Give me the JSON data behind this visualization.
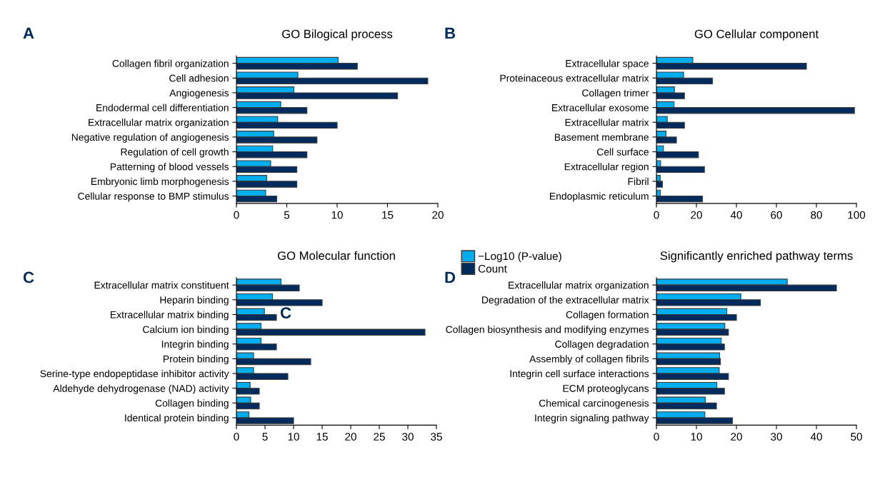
{
  "chart_data": [
    {
      "type": "bar",
      "orientation": "horizontal",
      "title": "GO Bilogical process",
      "annotations": [
        "A"
      ],
      "legend": "bottom right",
      "categories": [
        "Collagen fibril organization",
        "Cell adhesion",
        "Angiogenesis",
        "Endodermal cell differentiation",
        "Extracellular matrix organization",
        "Negative regulation of angiogenesis",
        "Regulation of cell growth",
        "Patterning of blood vessels",
        "Embryonic limb morphogenesis",
        "Cellular response to BMP stimulus"
      ],
      "xlim": [
        0,
        20
      ],
      "xticks": [
        0,
        5,
        10,
        15,
        20
      ],
      "series": [
        {
          "name": "−Log10 (P-value)",
          "color": "#00aeef",
          "values": [
            10.1,
            6.1,
            5.7,
            4.4,
            4.1,
            3.7,
            3.6,
            3.4,
            3.0,
            2.9
          ]
        },
        {
          "name": "Count",
          "color": "#002b5c",
          "values": [
            12,
            19,
            16,
            7,
            10,
            8,
            7,
            6,
            6,
            4
          ]
        }
      ]
    },
    {
      "type": "bar",
      "orientation": "horizontal",
      "title": "GO Cellular component",
      "annotations": [
        "B"
      ],
      "categories": [
        "Extracellular space",
        "Proteinaceous extracellular matrix",
        "Collagen trimer",
        "Extracellular exosome",
        "Extracellular matrix",
        "Basement membrane",
        "Cell surface",
        "Extracellular region",
        "Fibril",
        "Endoplasmic reticulum"
      ],
      "xlim": [
        0,
        100
      ],
      "xticks": [
        0,
        20,
        40,
        60,
        80,
        100
      ],
      "series": [
        {
          "color": "#00aeef",
          "values": [
            18.2,
            13.6,
            9.0,
            8.8,
            5.4,
            4.8,
            3.5,
            2.1,
            1.9,
            1.9
          ]
        },
        {
          "color": "#002b5c",
          "values": [
            75,
            28,
            14,
            99,
            14,
            10,
            21,
            24,
            3,
            23
          ]
        }
      ]
    },
    {
      "type": "bar",
      "orientation": "horizontal",
      "title": "GO Molecular function",
      "annotations": [
        "C",
        "C"
      ],
      "categories": [
        "Extracellular matrix constituent",
        "Heparin binding",
        "Extracellular matrix binding",
        "Calcium ion binding",
        "Integrin binding",
        "Protein binding",
        "Serine-type endopeptidase inhibitor activity",
        "Aldehyde dehydrogenase (NAD) activity",
        "Collagen binding",
        "Identical protein binding"
      ],
      "xlim": [
        0,
        35
      ],
      "xticks": [
        0,
        5,
        10,
        15,
        20,
        25,
        30,
        35
      ],
      "series": [
        {
          "color": "#00aeef",
          "values": [
            7.8,
            6.3,
            4.9,
            4.3,
            4.3,
            3.0,
            3.0,
            2.4,
            2.5,
            2.2
          ]
        },
        {
          "color": "#002b5c",
          "values": [
            11,
            15,
            7,
            33,
            7,
            13,
            9,
            4,
            4,
            10
          ]
        }
      ]
    },
    {
      "type": "bar",
      "orientation": "horizontal",
      "title": "Significantly enriched pathway terms",
      "annotations": [
        "D"
      ],
      "categories": [
        "Extracellular matrix organization",
        "Degradation of the extracellular matrix",
        "Collagen formation",
        "Collagen biosynthesis and modifying enzymes",
        "Collagen degradation",
        "Assembly of collagen fibrils",
        "Integrin cell surface interactions",
        "ECM proteoglycans",
        "Chemical carcinogenesis",
        "Integrin signaling pathway"
      ],
      "xlim": [
        0,
        50
      ],
      "xticks": [
        0,
        10,
        20,
        30,
        40,
        50
      ],
      "series": [
        {
          "color": "#00aeef",
          "values": [
            32.7,
            21.1,
            17.6,
            17.1,
            16.2,
            15.8,
            15.7,
            15.1,
            12.2,
            12.1
          ]
        },
        {
          "color": "#002b5c",
          "values": [
            45,
            26,
            20,
            18,
            17,
            16,
            18,
            17,
            15,
            19
          ]
        }
      ]
    }
  ]
}
